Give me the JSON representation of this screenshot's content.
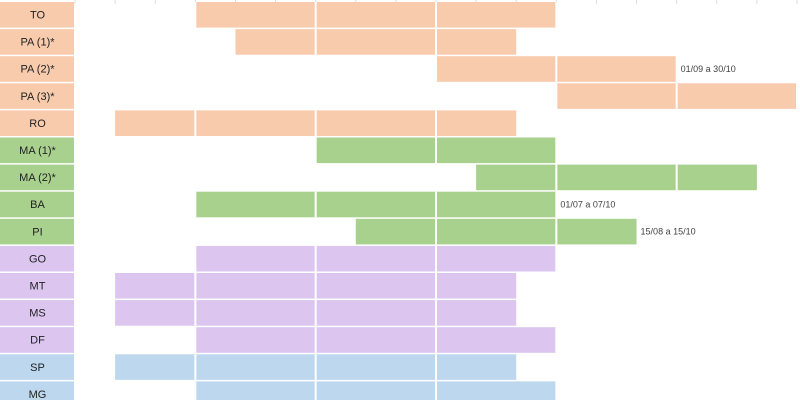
{
  "chart_data": {
    "type": "gantt",
    "xlim": [
      0,
      18
    ],
    "rows": [
      {
        "label": "TO",
        "color": "#f8cbad",
        "start": 3,
        "end": 12
      },
      {
        "label": "PA (1)*",
        "color": "#f8cbad",
        "start": 4,
        "end": 11
      },
      {
        "label": "PA (2)*",
        "color": "#f8cbad",
        "start": 9,
        "end": 15,
        "note": "01/09 a 30/10"
      },
      {
        "label": "PA (3)*",
        "color": "#f8cbad",
        "start": 12,
        "end": 18
      },
      {
        "label": "RO",
        "color": "#f8cbad",
        "start": 1,
        "end": 11
      },
      {
        "label": "MA (1)*",
        "color": "#a9d18e",
        "start": 6,
        "end": 12
      },
      {
        "label": "MA (2)*",
        "color": "#a9d18e",
        "start": 10,
        "end": 17
      },
      {
        "label": "BA",
        "color": "#a9d18e",
        "start": 3,
        "end": 12,
        "note": "01/07 a 07/10"
      },
      {
        "label": "PI",
        "color": "#a9d18e",
        "start": 7,
        "end": 14,
        "note": "15/08 a 15/10"
      },
      {
        "label": "GO",
        "color": "#dcc6f0",
        "start": 3,
        "end": 12
      },
      {
        "label": "MT",
        "color": "#dcc6f0",
        "start": 1,
        "end": 11
      },
      {
        "label": "MS",
        "color": "#dcc6f0",
        "start": 1,
        "end": 11
      },
      {
        "label": "DF",
        "color": "#dcc6f0",
        "start": 3,
        "end": 12
      },
      {
        "label": "SP",
        "color": "#bdd7ee",
        "start": 1,
        "end": 11
      },
      {
        "label": "MG",
        "color": "#bdd7ee",
        "start": 3,
        "end": 12
      }
    ]
  }
}
